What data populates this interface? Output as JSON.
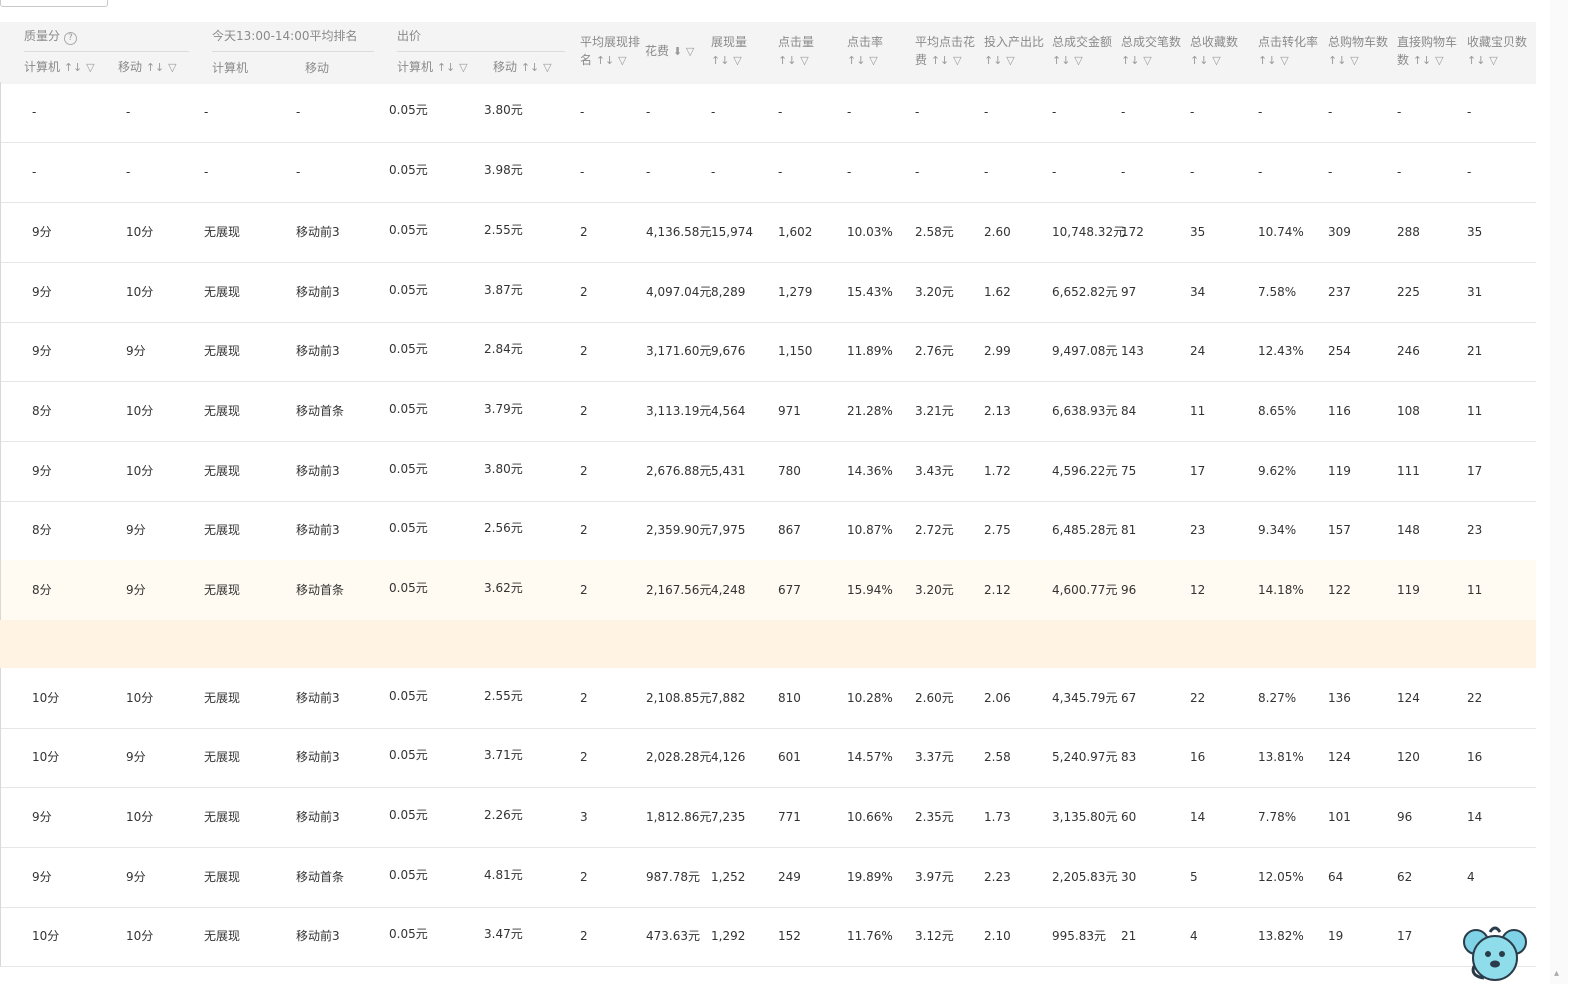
{
  "header": {
    "quality_group": "质量分",
    "quality_help_icon": "help-circle-icon",
    "rank_group": "今天13:00-14:00平均排名",
    "bid_group": "出价",
    "q_pc": "计算机",
    "q_mobile": "移动",
    "rank_pc": "计算机",
    "rank_mobile": "移动",
    "bid_pc": "计算机",
    "bid_mobile": "移动",
    "avg_rank": [
      "平均展现排",
      "名"
    ],
    "cost": "花费",
    "impressions": "展现量",
    "clicks": "点击量",
    "ctr": "点击率",
    "avg_cpc": [
      "平均点击花",
      "费"
    ],
    "roi": "投入产出比",
    "gmv": "总成交金额",
    "orders": "总成交笔数",
    "favorites": "总收藏数",
    "cvr": "点击转化率",
    "carts": "总购物车数",
    "direct_carts": [
      "直接购物车",
      "数"
    ],
    "fav_items": "收藏宝贝数",
    "sort_glyph": "↑↓",
    "filter_glyph": "▽",
    "sort_desc_glyph": "⬇"
  },
  "rows": [
    {
      "q_pc": "-",
      "q_mobile": "-",
      "rank_pc": "-",
      "rank_mobile": "-",
      "bid_pc": "0.05元",
      "bid_mobile": "3.80元",
      "avg_rank": "-",
      "cost": "-",
      "impressions": "-",
      "clicks": "-",
      "ctr": "-",
      "avg_cpc": "-",
      "roi": "-",
      "gmv": "-",
      "orders": "-",
      "favorites": "-",
      "cvr": "-",
      "carts": "-",
      "direct_carts": "-",
      "fav_items": "-"
    },
    {
      "q_pc": "-",
      "q_mobile": "-",
      "rank_pc": "-",
      "rank_mobile": "-",
      "bid_pc": "0.05元",
      "bid_mobile": "3.98元",
      "avg_rank": "-",
      "cost": "-",
      "impressions": "-",
      "clicks": "-",
      "ctr": "-",
      "avg_cpc": "-",
      "roi": "-",
      "gmv": "-",
      "orders": "-",
      "favorites": "-",
      "cvr": "-",
      "carts": "-",
      "direct_carts": "-",
      "fav_items": "-"
    },
    {
      "q_pc": "9分",
      "q_mobile": "10分",
      "rank_pc": "无展现",
      "rank_mobile": "移动前3",
      "bid_pc": "0.05元",
      "bid_mobile": "2.55元",
      "avg_rank": "2",
      "cost": "4,136.58元",
      "impressions": "15,974",
      "clicks": "1,602",
      "ctr": "10.03%",
      "avg_cpc": "2.58元",
      "roi": "2.60",
      "gmv": "10,748.32元",
      "orders": "172",
      "favorites": "35",
      "cvr": "10.74%",
      "carts": "309",
      "direct_carts": "288",
      "fav_items": "35"
    },
    {
      "q_pc": "9分",
      "q_mobile": "10分",
      "rank_pc": "无展现",
      "rank_mobile": "移动前3",
      "bid_pc": "0.05元",
      "bid_mobile": "3.87元",
      "avg_rank": "2",
      "cost": "4,097.04元",
      "impressions": "8,289",
      "clicks": "1,279",
      "ctr": "15.43%",
      "avg_cpc": "3.20元",
      "roi": "1.62",
      "gmv": "6,652.82元",
      "orders": "97",
      "favorites": "34",
      "cvr": "7.58%",
      "carts": "237",
      "direct_carts": "225",
      "fav_items": "31"
    },
    {
      "q_pc": "9分",
      "q_mobile": "9分",
      "rank_pc": "无展现",
      "rank_mobile": "移动前3",
      "bid_pc": "0.05元",
      "bid_mobile": "2.84元",
      "avg_rank": "2",
      "cost": "3,171.60元",
      "impressions": "9,676",
      "clicks": "1,150",
      "ctr": "11.89%",
      "avg_cpc": "2.76元",
      "roi": "2.99",
      "gmv": "9,497.08元",
      "orders": "143",
      "favorites": "24",
      "cvr": "12.43%",
      "carts": "254",
      "direct_carts": "246",
      "fav_items": "21"
    },
    {
      "q_pc": "8分",
      "q_mobile": "10分",
      "rank_pc": "无展现",
      "rank_mobile": "移动首条",
      "bid_pc": "0.05元",
      "bid_mobile": "3.79元",
      "avg_rank": "2",
      "cost": "3,113.19元",
      "impressions": "4,564",
      "clicks": "971",
      "ctr": "21.28%",
      "avg_cpc": "3.21元",
      "roi": "2.13",
      "gmv": "6,638.93元",
      "orders": "84",
      "favorites": "11",
      "cvr": "8.65%",
      "carts": "116",
      "direct_carts": "108",
      "fav_items": "11"
    },
    {
      "q_pc": "9分",
      "q_mobile": "10分",
      "rank_pc": "无展现",
      "rank_mobile": "移动前3",
      "bid_pc": "0.05元",
      "bid_mobile": "3.80元",
      "avg_rank": "2",
      "cost": "2,676.88元",
      "impressions": "5,431",
      "clicks": "780",
      "ctr": "14.36%",
      "avg_cpc": "3.43元",
      "roi": "1.72",
      "gmv": "4,596.22元",
      "orders": "75",
      "favorites": "17",
      "cvr": "9.62%",
      "carts": "119",
      "direct_carts": "111",
      "fav_items": "17"
    },
    {
      "q_pc": "8分",
      "q_mobile": "9分",
      "rank_pc": "无展现",
      "rank_mobile": "移动前3",
      "bid_pc": "0.05元",
      "bid_mobile": "2.56元",
      "avg_rank": "2",
      "cost": "2,359.90元",
      "impressions": "7,975",
      "clicks": "867",
      "ctr": "10.87%",
      "avg_cpc": "2.72元",
      "roi": "2.75",
      "gmv": "6,485.28元",
      "orders": "81",
      "favorites": "23",
      "cvr": "9.34%",
      "carts": "157",
      "direct_carts": "148",
      "fav_items": "23"
    },
    {
      "q_pc": "8分",
      "q_mobile": "9分",
      "rank_pc": "无展现",
      "rank_mobile": "移动首条",
      "bid_pc": "0.05元",
      "bid_mobile": "3.62元",
      "avg_rank": "2",
      "cost": "2,167.56元",
      "impressions": "4,248",
      "clicks": "677",
      "ctr": "15.94%",
      "avg_cpc": "3.20元",
      "roi": "2.12",
      "gmv": "4,600.77元",
      "orders": "96",
      "favorites": "12",
      "cvr": "14.18%",
      "carts": "122",
      "direct_carts": "119",
      "fav_items": "11"
    },
    {
      "q_pc": "10分",
      "q_mobile": "10分",
      "rank_pc": "无展现",
      "rank_mobile": "移动前3",
      "bid_pc": "0.05元",
      "bid_mobile": "2.55元",
      "avg_rank": "2",
      "cost": "2,108.85元",
      "impressions": "7,882",
      "clicks": "810",
      "ctr": "10.28%",
      "avg_cpc": "2.60元",
      "roi": "2.06",
      "gmv": "4,345.79元",
      "orders": "67",
      "favorites": "22",
      "cvr": "8.27%",
      "carts": "136",
      "direct_carts": "124",
      "fav_items": "22"
    },
    {
      "q_pc": "10分",
      "q_mobile": "9分",
      "rank_pc": "无展现",
      "rank_mobile": "移动前3",
      "bid_pc": "0.05元",
      "bid_mobile": "3.71元",
      "avg_rank": "2",
      "cost": "2,028.28元",
      "impressions": "4,126",
      "clicks": "601",
      "ctr": "14.57%",
      "avg_cpc": "3.37元",
      "roi": "2.58",
      "gmv": "5,240.97元",
      "orders": "83",
      "favorites": "16",
      "cvr": "13.81%",
      "carts": "124",
      "direct_carts": "120",
      "fav_items": "16"
    },
    {
      "q_pc": "9分",
      "q_mobile": "10分",
      "rank_pc": "无展现",
      "rank_mobile": "移动前3",
      "bid_pc": "0.05元",
      "bid_mobile": "2.26元",
      "avg_rank": "3",
      "cost": "1,812.86元",
      "impressions": "7,235",
      "clicks": "771",
      "ctr": "10.66%",
      "avg_cpc": "2.35元",
      "roi": "1.73",
      "gmv": "3,135.80元",
      "orders": "60",
      "favorites": "14",
      "cvr": "7.78%",
      "carts": "101",
      "direct_carts": "96",
      "fav_items": "14"
    },
    {
      "q_pc": "9分",
      "q_mobile": "9分",
      "rank_pc": "无展现",
      "rank_mobile": "移动首条",
      "bid_pc": "0.05元",
      "bid_mobile": "4.81元",
      "avg_rank": "2",
      "cost": "987.78元",
      "impressions": "1,252",
      "clicks": "249",
      "ctr": "19.89%",
      "avg_cpc": "3.97元",
      "roi": "2.23",
      "gmv": "2,205.83元",
      "orders": "30",
      "favorites": "5",
      "cvr": "12.05%",
      "carts": "64",
      "direct_carts": "62",
      "fav_items": "4"
    },
    {
      "q_pc": "10分",
      "q_mobile": "10分",
      "rank_pc": "无展现",
      "rank_mobile": "移动前3",
      "bid_pc": "0.05元",
      "bid_mobile": "3.47元",
      "avg_rank": "2",
      "cost": "473.63元",
      "impressions": "1,292",
      "clicks": "152",
      "ctr": "11.76%",
      "avg_cpc": "3.12元",
      "roi": "2.10",
      "gmv": "995.83元",
      "orders": "21",
      "favorites": "4",
      "cvr": "13.82%",
      "carts": "19",
      "direct_carts": "17",
      "fav_items": ""
    }
  ],
  "highlight_row": 8,
  "mascot_icon": "customer-service-mascot-icon",
  "scroll_icon": "scroll-up-arrow-icon"
}
